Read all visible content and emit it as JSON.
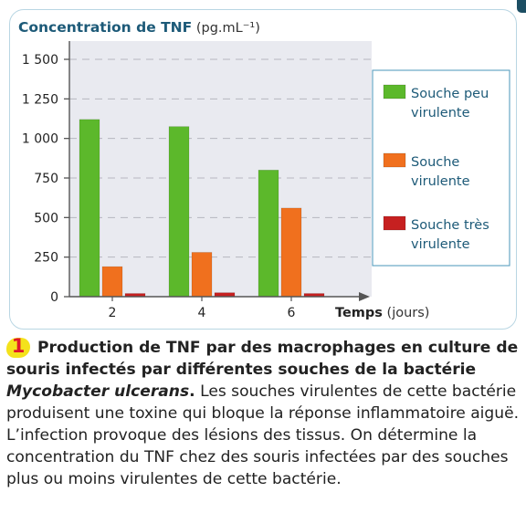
{
  "chart_data": {
    "type": "bar",
    "title": "Concentration de TNF",
    "title_unit": "(pg.mL⁻¹)",
    "xlabel": "Temps",
    "xlabel_unit": "(jours)",
    "categories": [
      "2",
      "4",
      "6"
    ],
    "yticks": [
      "0",
      "250",
      "500",
      "750",
      "1 000",
      "1 250",
      "1 500"
    ],
    "ylim": [
      0,
      1500
    ],
    "grid": true,
    "legend_position": "right",
    "series": [
      {
        "name": "Souche peu virulente",
        "values": [
          1120,
          1075,
          800
        ],
        "color": "#5cb82b"
      },
      {
        "name": "Souche virulente",
        "values": [
          190,
          280,
          560
        ],
        "color": "#f0701e"
      },
      {
        "name": "Souche très virulente",
        "values": [
          20,
          25,
          20
        ],
        "color": "#c62020"
      }
    ],
    "colors": {
      "plot_background": "#e9eaf0",
      "title": "#1d5a78",
      "axis": "#555555",
      "gridline": "#b6b7bf"
    }
  },
  "caption": {
    "number": "1",
    "title_before_italic": "Production de TNF par des macrophages en culture de souris infectés par différentes souches de la bactérie ",
    "title_italic": "Mycobacter ulcerans",
    "title_after_italic": ".",
    "body": " Les souches virulentes de cette bactérie produisent une toxine qui bloque la réponse inflammatoire aiguë. L’infection provoque des lésions des tissus. On détermine la concentration du TNF chez des souris infectées par des souches plus ou moins virulentes de cette bactérie.",
    "badge_color": "#f4e21c",
    "number_color": "#e0162b"
  }
}
